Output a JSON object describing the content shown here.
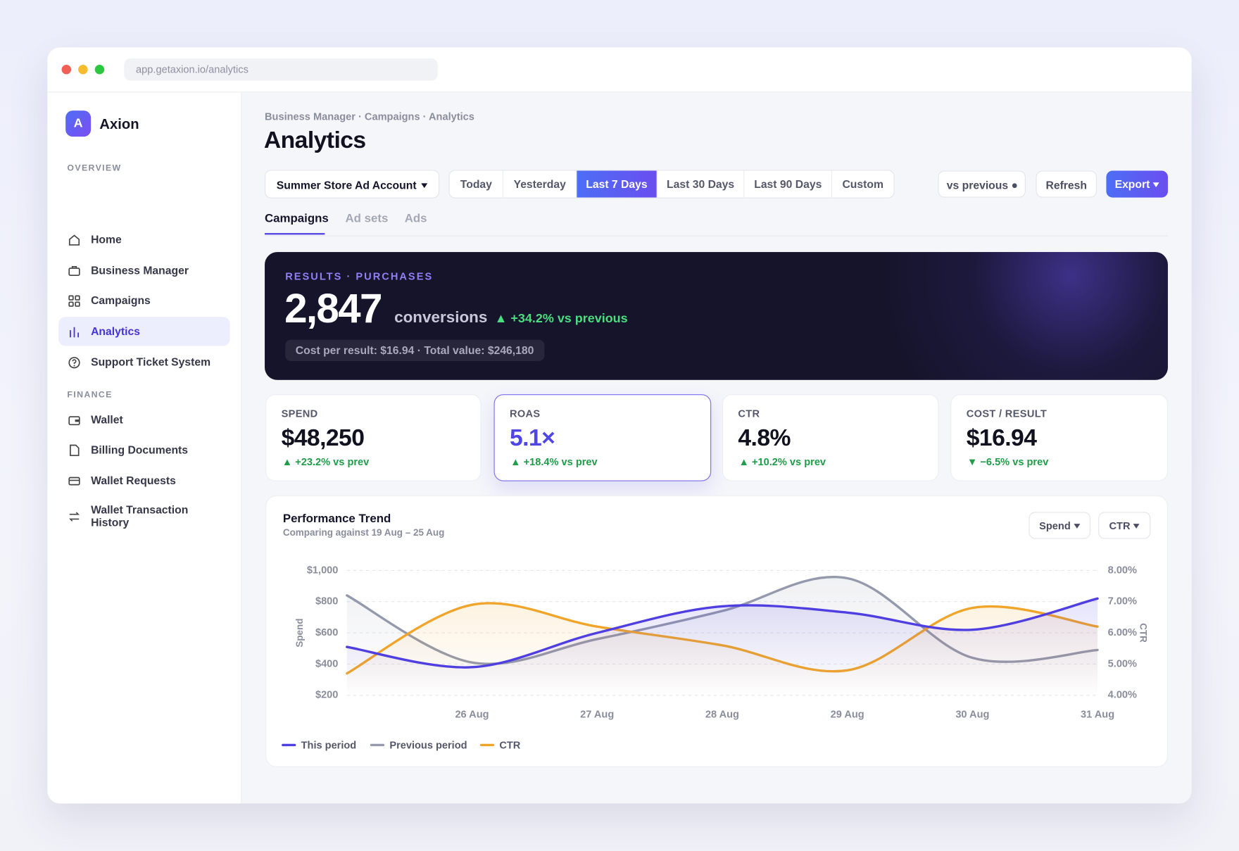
{
  "browser": {
    "url": "app.getaxion.io/analytics"
  },
  "sidebar": {
    "logo": "A",
    "brand": "Axion",
    "sections": [
      {
        "title": "OVERVIEW",
        "items": [
          "Home",
          "Business Manager",
          "Campaigns",
          "Analytics",
          "Support Ticket System"
        ]
      },
      {
        "title": "FINANCE",
        "items": [
          "Wallet",
          "Billing Documents",
          "Wallet Requests",
          "Wallet Transaction History"
        ]
      }
    ]
  },
  "header": {
    "breadcrumb": "Business Manager · Campaigns · Analytics",
    "title": "Analytics"
  },
  "toolbar": {
    "account": "Summer Store Ad Account",
    "ranges": [
      "Today",
      "Yesterday",
      "Last 7 Days",
      "Last 30 Days",
      "Last 90 Days",
      "Custom"
    ],
    "compare": "vs previous",
    "refresh": "Refresh",
    "export": "Export"
  },
  "tabs": [
    "Campaigns",
    "Ad sets",
    "Ads"
  ],
  "hero": {
    "label": "RESULTS · PURCHASES",
    "value": "2,847",
    "unit": "conversions",
    "delta": "▲ +34.2% vs previous",
    "details": "Cost per result: $16.94 · Total value: $246,180"
  },
  "kpis": [
    {
      "label": "SPEND",
      "value": "$48,250",
      "delta": "▲ +23.2% vs prev"
    },
    {
      "label": "ROAS",
      "value": "5.1×",
      "delta": "▲ +18.4% vs prev"
    },
    {
      "label": "CTR",
      "value": "4.8%",
      "delta": "▲ +10.2% vs prev"
    },
    {
      "label": "COST / RESULT",
      "value": "$16.94",
      "delta": "▼ −6.5% vs prev"
    }
  ],
  "chart_data": {
    "type": "line",
    "title": "Performance Trend",
    "subtitle": "Comparing against 19 Aug – 25 Aug",
    "controls": [
      "Spend",
      "CTR"
    ],
    "ylabel": "Spend",
    "y2label": "CTR",
    "categories": [
      null,
      "26 Aug",
      "27 Aug",
      "28 Aug",
      "29 Aug",
      "30 Aug",
      "31 Aug"
    ],
    "series": [
      {
        "name": "This period",
        "color": "#4f3ee0",
        "values": [
          510,
          380,
          600,
          770,
          730,
          620,
          820
        ]
      },
      {
        "name": "Previous period",
        "color": "#9499ab",
        "values": [
          840,
          410,
          560,
          740,
          950,
          440,
          490
        ]
      },
      {
        "name": "CTR",
        "color": "#f0a52a",
        "axis": "y2",
        "values": [
          4.7,
          6.9,
          6.2,
          5.6,
          4.8,
          6.8,
          6.2
        ]
      }
    ],
    "ylim": [
      200,
      1000
    ],
    "yticks": [
      {
        "value": 200,
        "label": "$200"
      },
      {
        "value": 400,
        "label": "$400"
      },
      {
        "value": 600,
        "label": "$600"
      },
      {
        "value": 800,
        "label": "$800"
      },
      {
        "value": 1000,
        "label": "$1,000"
      }
    ],
    "y2lim": [
      4,
      8
    ],
    "y2ticks": [
      {
        "value": 4,
        "label": "4.00%"
      },
      {
        "value": 5,
        "label": "5.00%"
      },
      {
        "value": 6,
        "label": "6.00%"
      },
      {
        "value": 7,
        "label": "7.00%"
      },
      {
        "value": 8,
        "label": "8.00%"
      }
    ],
    "grid": true
  }
}
